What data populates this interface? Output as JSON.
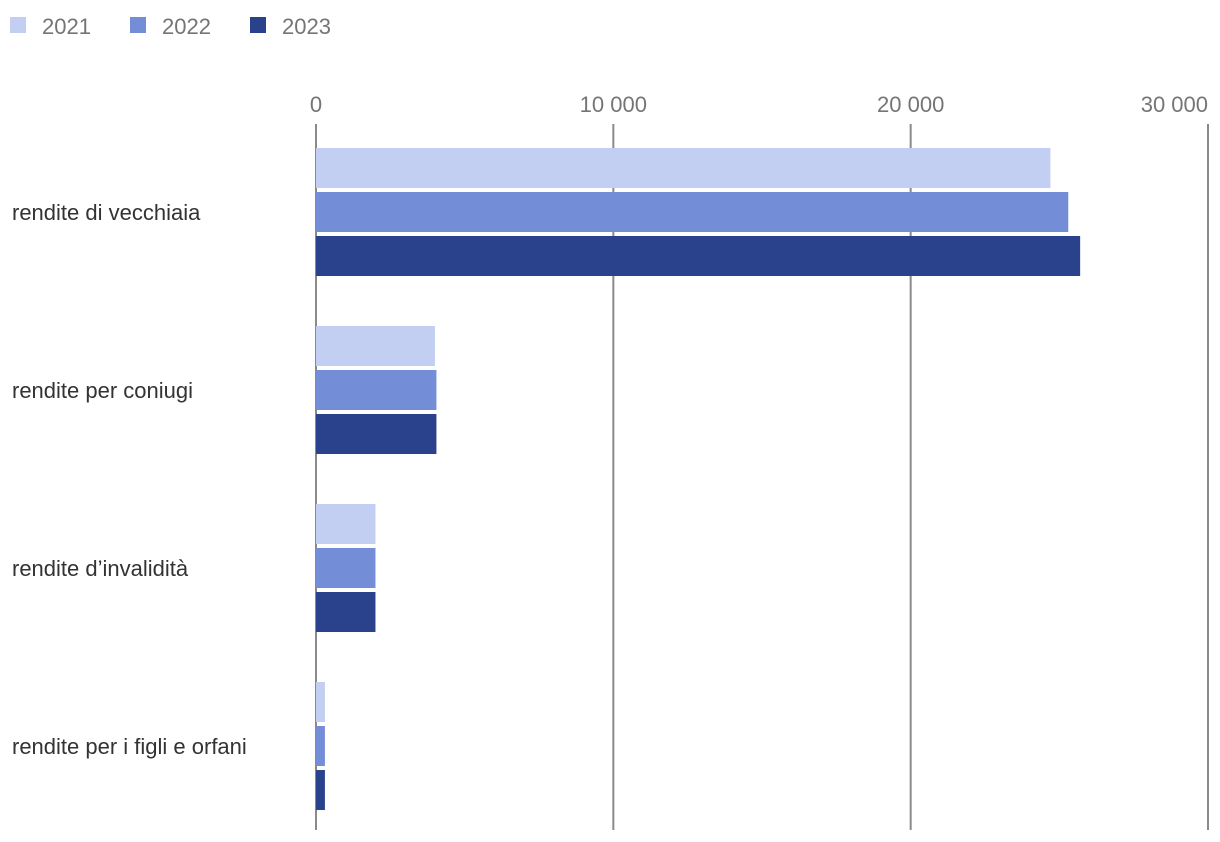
{
  "chart_data": {
    "type": "bar",
    "orientation": "horizontal",
    "categories": [
      "rendite di vecchiaia",
      "rendite per coniugi",
      "rendite d’invalidità",
      "rendite per i figli e orfani"
    ],
    "series": [
      {
        "name": "2021",
        "color": "#c2cff2",
        "values": [
          24700,
          4000,
          2000,
          300
        ]
      },
      {
        "name": "2022",
        "color": "#738dd7",
        "values": [
          25300,
          4050,
          2000,
          300
        ]
      },
      {
        "name": "2023",
        "color": "#2a418c",
        "values": [
          25700,
          4050,
          2000,
          300
        ]
      }
    ],
    "xlim": [
      0,
      30000
    ],
    "x_ticks": [
      0,
      10000,
      20000,
      30000
    ],
    "x_tick_labels": [
      "0",
      "10 000",
      "20 000",
      "30 000"
    ],
    "x_axis_position": "top",
    "grid": "vertical",
    "legend": "top-left",
    "title": "",
    "xlabel": "",
    "ylabel": ""
  }
}
